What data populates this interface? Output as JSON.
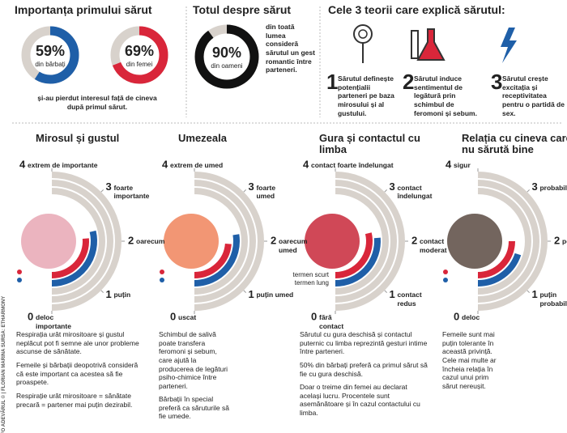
{
  "chart_data": [
    {
      "type": "donut",
      "value": 59,
      "value_label": "59%",
      "label": "din bărbați",
      "color": "#1f5fa8"
    },
    {
      "type": "donut",
      "value": 69,
      "value_label": "69%",
      "label": "din femei",
      "color": "#d9263a"
    },
    {
      "type": "donut",
      "value": 90,
      "value_label": "90%",
      "label": "din oameni",
      "color": "#111111"
    },
    {
      "type": "radial_bar",
      "title": "Mirosul și gustul",
      "ticks": [
        0,
        1,
        2,
        3,
        4
      ],
      "tick_labels": [
        "deloc importante",
        "puțin",
        "oarecum",
        "foarte importante",
        "extrem de importante"
      ],
      "series": [
        {
          "color": "#d9263a",
          "value": 2.1
        },
        {
          "color": "#1f5fa8",
          "value": 2.3
        }
      ],
      "image_color": "#e8a7b4",
      "notes": [
        "Respirația urât mirositoare și gustul neplăcut pot fi semne ale unor probleme ascunse de sănătate.",
        "Femeile și bărbații deopotrivă consideră că este important ca acestea să fie proaspete.",
        "Respirație urât mirositoare = sănătate precară = partener mai puțin dezirabil."
      ]
    },
    {
      "type": "radial_bar",
      "title": "Umezeala",
      "ticks": [
        0,
        1,
        2,
        3,
        4
      ],
      "tick_labels": [
        "uscat",
        "puțin umed",
        "oarecum umed",
        "foarte umed",
        "extrem de umed"
      ],
      "series": [
        {
          "color": "#d9263a",
          "value": 1.9
        },
        {
          "color": "#1f5fa8",
          "value": 2.2
        }
      ],
      "image_color": "#f0845c",
      "notes": [
        "Schimbul de salivă poate transfera feromoni și sebum, care ajută la producerea de legături psiho-chimice între parteneri.",
        "Bărbații în special preferă ca săruturile să fie umede."
      ]
    },
    {
      "type": "radial_bar",
      "title": "Gura și contactul cu limba",
      "ticks": [
        0,
        1,
        2,
        3,
        4
      ],
      "tick_labels": [
        "fără contact",
        "contact redus",
        "contact moderat",
        "contact îndelungat",
        "contact foarte îndelungat"
      ],
      "series": [
        {
          "name": "termen scurt",
          "color": "#d9263a",
          "value": 2.3
        },
        {
          "name": "termen lung",
          "color": "#1f5fa8",
          "value": 2.1
        }
      ],
      "image_color": "#c8283a",
      "notes": [
        "Sărutul cu gura deschisă și contactul puternic cu limba reprezintă gesturi intime între parteneri.",
        "50% din bărbați preferă ca primul sărut să fie cu gura deschisă.",
        "Doar o treime din femei au declarat același lucru. Procentele sunt asemănătoare și în cazul contactului cu limba."
      ]
    },
    {
      "type": "radial_bar",
      "title": "Relația cu cineva care nu sărută bine",
      "ticks": [
        0,
        1,
        2,
        3,
        4
      ],
      "tick_labels": [
        "deloc",
        "puțin probabil",
        "posibil",
        "probabil",
        "sigur"
      ],
      "series": [
        {
          "color": "#d9263a",
          "value": 2.0
        },
        {
          "color": "#1f5fa8",
          "value": 1.6
        }
      ],
      "image_color": "#5a4a42",
      "notes": [
        "Femeile sunt mai puțin tolerante în această privință. Cele mai multe ar încheia relația în cazul unui prim sărut nereușit."
      ]
    }
  ],
  "panels": {
    "first_kiss": {
      "title": "Importanța primului sărut",
      "note": "și-au pierdut interesul față de cineva după primul sărut."
    },
    "about": {
      "title": "Totul despre sărut",
      "text": "din toată lumea consideră sărutul un gest romantic între parteneri."
    },
    "theories": {
      "title": "Cele 3 teorii care explică sărutul:",
      "items": [
        {
          "number": 1,
          "text": "Sărutul definește potențialii parteneri pe baza mirosului și al gustului."
        },
        {
          "number": 2,
          "text": "Sărutul induce sentimentul de legătură prin schimbul de feromoni și sebum."
        },
        {
          "number": 3,
          "text": "Sărutul crește excitația și receptivitatea pentru o partidă de sex."
        }
      ]
    }
  },
  "credit": "INFO ADEVĂRUL © | FLORIAN MARINA SURSA: ETHARMONY"
}
